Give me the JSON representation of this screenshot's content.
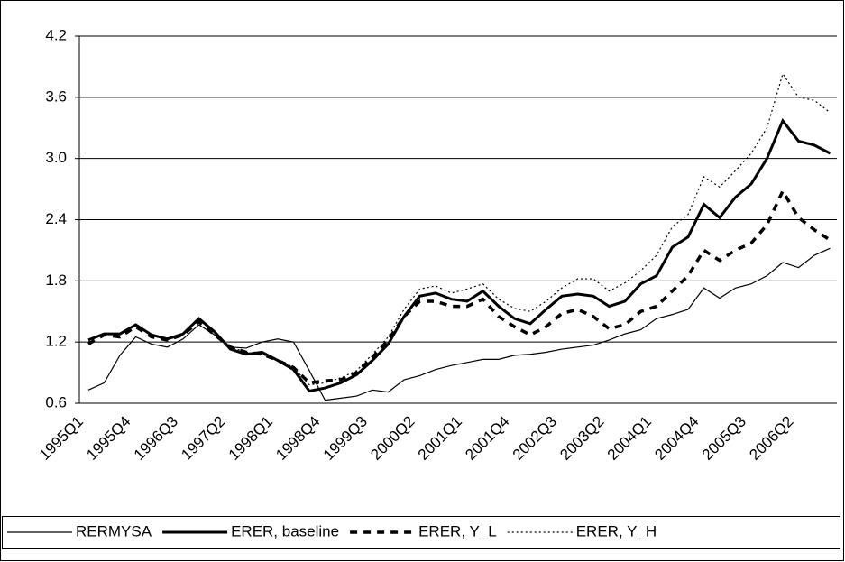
{
  "chart_data": {
    "type": "line",
    "categories": [
      "1995Q1",
      null,
      null,
      "1995Q4",
      null,
      null,
      "1996Q3",
      null,
      null,
      "1997Q2",
      null,
      null,
      "1998Q1",
      null,
      null,
      "1998Q4",
      null,
      null,
      "1999Q3",
      null,
      null,
      "2000Q2",
      null,
      null,
      "2001Q1",
      null,
      null,
      "2001Q4",
      null,
      null,
      "2002Q3",
      null,
      null,
      "2003Q2",
      null,
      null,
      "2004Q1",
      null,
      null,
      "2004Q4",
      null,
      null,
      "2005Q3",
      null,
      null,
      "2006Q2",
      null,
      null
    ],
    "series": [
      {
        "name": "RERMYSA",
        "color": "#000000",
        "width": 1.2,
        "style": "solid",
        "values": [
          0.73,
          0.8,
          1.07,
          1.25,
          1.18,
          1.15,
          1.23,
          1.37,
          1.27,
          1.15,
          1.14,
          1.2,
          1.23,
          1.2,
          0.92,
          0.63,
          0.65,
          0.67,
          0.73,
          0.71,
          0.83,
          0.87,
          0.93,
          0.97,
          1.0,
          1.03,
          1.03,
          1.07,
          1.08,
          1.1,
          1.13,
          1.15,
          1.17,
          1.22,
          1.28,
          1.32,
          1.43,
          1.47,
          1.52,
          1.73,
          1.63,
          1.73,
          1.77,
          1.85,
          1.98,
          1.93,
          2.05,
          2.12
        ]
      },
      {
        "name": "ERER, baseline",
        "color": "#000000",
        "width": 3,
        "style": "solid",
        "values": [
          1.22,
          1.28,
          1.28,
          1.37,
          1.27,
          1.23,
          1.28,
          1.43,
          1.3,
          1.13,
          1.08,
          1.1,
          1.02,
          0.93,
          0.72,
          0.75,
          0.8,
          0.88,
          1.02,
          1.18,
          1.45,
          1.65,
          1.68,
          1.62,
          1.6,
          1.7,
          1.55,
          1.43,
          1.38,
          1.52,
          1.65,
          1.67,
          1.65,
          1.55,
          1.6,
          1.77,
          1.85,
          2.13,
          2.23,
          2.55,
          2.42,
          2.62,
          2.75,
          3.0,
          3.37,
          3.17,
          3.13,
          3.05
        ]
      },
      {
        "name": "ERER, Y_L",
        "color": "#000000",
        "width": 3.5,
        "style": "dashed",
        "values": [
          1.18,
          1.27,
          1.25,
          1.35,
          1.25,
          1.22,
          1.27,
          1.4,
          1.27,
          1.15,
          1.1,
          1.08,
          1.02,
          0.95,
          0.8,
          0.82,
          0.83,
          0.9,
          1.05,
          1.22,
          1.45,
          1.6,
          1.6,
          1.55,
          1.55,
          1.62,
          1.45,
          1.35,
          1.27,
          1.35,
          1.48,
          1.52,
          1.45,
          1.33,
          1.37,
          1.5,
          1.55,
          1.7,
          1.85,
          2.1,
          2.0,
          2.1,
          2.17,
          2.35,
          2.68,
          2.42,
          2.3,
          2.2
        ]
      },
      {
        "name": "ERER, Y_H",
        "color": "#000000",
        "width": 1.2,
        "style": "dotted",
        "values": [
          1.2,
          1.28,
          1.28,
          1.37,
          1.27,
          1.23,
          1.28,
          1.43,
          1.3,
          1.15,
          1.1,
          1.08,
          1.03,
          0.95,
          0.78,
          0.8,
          0.85,
          0.92,
          1.08,
          1.25,
          1.52,
          1.72,
          1.75,
          1.68,
          1.72,
          1.77,
          1.62,
          1.53,
          1.5,
          1.6,
          1.73,
          1.82,
          1.82,
          1.7,
          1.78,
          1.9,
          2.05,
          2.33,
          2.45,
          2.82,
          2.72,
          2.88,
          3.05,
          3.3,
          3.83,
          3.6,
          3.57,
          3.45
        ]
      }
    ],
    "ylim": [
      0.6,
      4.2
    ],
    "yticks": [
      0.6,
      1.2,
      1.8,
      {
        "value": 2.4,
        "label": "2.4"
      },
      {
        "value": 3.0,
        "label": "3.0"
      },
      3.6,
      4.2
    ],
    "grid": true,
    "legend": "bottom"
  }
}
